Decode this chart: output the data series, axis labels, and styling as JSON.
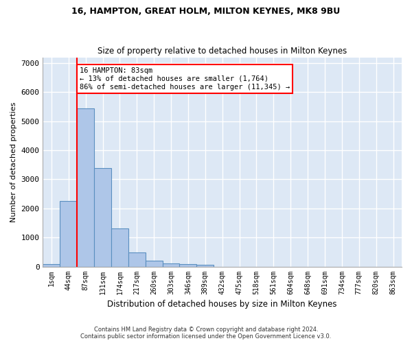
{
  "title1": "16, HAMPTON, GREAT HOLM, MILTON KEYNES, MK8 9BU",
  "title2": "Size of property relative to detached houses in Milton Keynes",
  "xlabel": "Distribution of detached houses by size in Milton Keynes",
  "ylabel": "Number of detached properties",
  "footnote1": "Contains HM Land Registry data © Crown copyright and database right 2024.",
  "footnote2": "Contains public sector information licensed under the Open Government Licence v3.0.",
  "bin_labels": [
    "1sqm",
    "44sqm",
    "87sqm",
    "131sqm",
    "174sqm",
    "217sqm",
    "260sqm",
    "303sqm",
    "346sqm",
    "389sqm",
    "432sqm",
    "475sqm",
    "518sqm",
    "561sqm",
    "604sqm",
    "648sqm",
    "691sqm",
    "734sqm",
    "777sqm",
    "820sqm",
    "863sqm"
  ],
  "bar_values": [
    75,
    2250,
    5450,
    3400,
    1300,
    480,
    200,
    100,
    75,
    50,
    0,
    0,
    0,
    0,
    0,
    0,
    0,
    0,
    0,
    0,
    0
  ],
  "bar_color": "#aec6e8",
  "bar_edge_color": "#5a8fc0",
  "property_line_bin": 2,
  "annotation_text": "16 HAMPTON: 83sqm\n← 13% of detached houses are smaller (1,764)\n86% of semi-detached houses are larger (11,345) →",
  "annotation_box_color": "white",
  "annotation_box_edge": "red",
  "marker_color": "red",
  "ylim": [
    0,
    7200
  ],
  "yticks": [
    0,
    1000,
    2000,
    3000,
    4000,
    5000,
    6000,
    7000
  ],
  "fig_bg": "white",
  "plot_bg": "#dde8f5",
  "grid_color": "white"
}
